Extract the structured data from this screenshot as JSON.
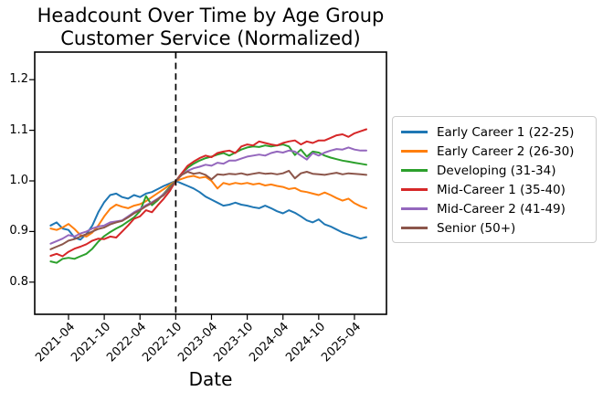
{
  "chart_data": {
    "type": "line",
    "title": "Headcount Over Time by Age Group",
    "subtitle": "Customer Service (Normalized)",
    "xlabel": "Date",
    "ylabel": "",
    "grid": false,
    "legend_position": "outside-right",
    "vline_x": "2022-10",
    "vline_style": "black dashed vertical line at normalization date",
    "ylim": [
      0.735,
      1.255
    ],
    "y_ticks": [
      0.8,
      0.9,
      1.0,
      1.1,
      1.2
    ],
    "y_tick_labels": [
      "0.8",
      "0.9",
      "1.0",
      "1.1",
      "1.2"
    ],
    "x_tick_labels": [
      "2021-04",
      "2021-10",
      "2022-04",
      "2022-10",
      "2023-04",
      "2023-10",
      "2024-04",
      "2024-10",
      "2025-04"
    ],
    "x": [
      "2021-01",
      "2021-02",
      "2021-03",
      "2021-04",
      "2021-05",
      "2021-06",
      "2021-07",
      "2021-08",
      "2021-09",
      "2021-10",
      "2021-11",
      "2021-12",
      "2022-01",
      "2022-02",
      "2022-03",
      "2022-04",
      "2022-05",
      "2022-06",
      "2022-07",
      "2022-08",
      "2022-09",
      "2022-10",
      "2022-11",
      "2022-12",
      "2023-01",
      "2023-02",
      "2023-03",
      "2023-04",
      "2023-05",
      "2023-06",
      "2023-07",
      "2023-08",
      "2023-09",
      "2023-10",
      "2023-11",
      "2023-12",
      "2024-01",
      "2024-02",
      "2024-03",
      "2024-04",
      "2024-05",
      "2024-06",
      "2024-07",
      "2024-08",
      "2024-09",
      "2024-10",
      "2024-11",
      "2024-12",
      "2025-01",
      "2025-02",
      "2025-03",
      "2025-04",
      "2025-05",
      "2025-06"
    ],
    "series": [
      {
        "name": "Early Career 1 (22-25)",
        "color": "#1f77b4",
        "values": [
          0.912,
          0.918,
          0.906,
          0.903,
          0.888,
          0.884,
          0.895,
          0.912,
          0.938,
          0.958,
          0.972,
          0.975,
          0.968,
          0.965,
          0.972,
          0.968,
          0.975,
          0.978,
          0.984,
          0.99,
          0.995,
          1.0,
          0.995,
          0.99,
          0.985,
          0.978,
          0.969,
          0.963,
          0.957,
          0.951,
          0.953,
          0.957,
          0.953,
          0.951,
          0.948,
          0.946,
          0.951,
          0.946,
          0.94,
          0.936,
          0.942,
          0.937,
          0.93,
          0.922,
          0.918,
          0.924,
          0.914,
          0.91,
          0.904,
          0.898,
          0.894,
          0.89,
          0.886,
          0.889
        ]
      },
      {
        "name": "Early Career 2 (26-30)",
        "color": "#ff7f0e",
        "values": [
          0.906,
          0.903,
          0.908,
          0.915,
          0.905,
          0.893,
          0.89,
          0.898,
          0.912,
          0.93,
          0.945,
          0.953,
          0.949,
          0.946,
          0.951,
          0.954,
          0.96,
          0.968,
          0.976,
          0.984,
          0.992,
          1.0,
          1.004,
          1.008,
          1.01,
          1.006,
          1.008,
          1.0,
          0.985,
          0.996,
          0.993,
          0.996,
          0.994,
          0.996,
          0.993,
          0.995,
          0.991,
          0.993,
          0.99,
          0.988,
          0.984,
          0.986,
          0.98,
          0.978,
          0.975,
          0.972,
          0.977,
          0.972,
          0.966,
          0.961,
          0.965,
          0.956,
          0.95,
          0.946
        ]
      },
      {
        "name": "Developing (31-34)",
        "color": "#2ca02c",
        "values": [
          0.841,
          0.838,
          0.846,
          0.848,
          0.846,
          0.851,
          0.856,
          0.866,
          0.88,
          0.891,
          0.899,
          0.906,
          0.912,
          0.92,
          0.928,
          0.94,
          0.97,
          0.952,
          0.962,
          0.975,
          0.988,
          1.0,
          1.015,
          1.026,
          1.034,
          1.04,
          1.045,
          1.048,
          1.052,
          1.055,
          1.05,
          1.056,
          1.062,
          1.066,
          1.068,
          1.067,
          1.07,
          1.068,
          1.07,
          1.072,
          1.068,
          1.051,
          1.062,
          1.048,
          1.058,
          1.056,
          1.05,
          1.046,
          1.043,
          1.04,
          1.038,
          1.036,
          1.034,
          1.032
        ]
      },
      {
        "name": "Mid-Career 1 (35-40)",
        "color": "#d62728",
        "values": [
          0.852,
          0.856,
          0.851,
          0.86,
          0.866,
          0.87,
          0.875,
          0.882,
          0.886,
          0.885,
          0.89,
          0.888,
          0.9,
          0.912,
          0.925,
          0.93,
          0.942,
          0.938,
          0.952,
          0.965,
          0.98,
          1.0,
          1.015,
          1.03,
          1.038,
          1.045,
          1.05,
          1.047,
          1.055,
          1.058,
          1.06,
          1.055,
          1.068,
          1.072,
          1.07,
          1.078,
          1.075,
          1.072,
          1.07,
          1.075,
          1.078,
          1.08,
          1.072,
          1.078,
          1.075,
          1.08,
          1.08,
          1.085,
          1.09,
          1.092,
          1.087,
          1.094,
          1.098,
          1.102
        ]
      },
      {
        "name": "Mid-Career 2 (41-49)",
        "color": "#9467bd",
        "values": [
          0.876,
          0.881,
          0.886,
          0.893,
          0.89,
          0.896,
          0.9,
          0.906,
          0.91,
          0.912,
          0.918,
          0.92,
          0.922,
          0.93,
          0.938,
          0.944,
          0.952,
          0.958,
          0.965,
          0.974,
          0.986,
          1.0,
          1.012,
          1.02,
          1.025,
          1.028,
          1.032,
          1.03,
          1.036,
          1.034,
          1.04,
          1.04,
          1.044,
          1.048,
          1.05,
          1.052,
          1.05,
          1.055,
          1.058,
          1.056,
          1.06,
          1.058,
          1.05,
          1.042,
          1.055,
          1.05,
          1.056,
          1.06,
          1.063,
          1.062,
          1.066,
          1.062,
          1.06,
          1.06
        ]
      },
      {
        "name": "Senior (50+)",
        "color": "#8c564b",
        "values": [
          0.865,
          0.87,
          0.875,
          0.882,
          0.885,
          0.89,
          0.895,
          0.9,
          0.905,
          0.908,
          0.914,
          0.918,
          0.921,
          0.928,
          0.936,
          0.942,
          0.95,
          0.956,
          0.964,
          0.972,
          0.985,
          1.0,
          1.012,
          1.018,
          1.014,
          1.016,
          1.012,
          1.003,
          1.013,
          1.012,
          1.014,
          1.013,
          1.015,
          1.012,
          1.014,
          1.016,
          1.014,
          1.015,
          1.013,
          1.015,
          1.02,
          1.005,
          1.015,
          1.018,
          1.014,
          1.013,
          1.012,
          1.014,
          1.016,
          1.013,
          1.015,
          1.014,
          1.013,
          1.012
        ]
      }
    ]
  }
}
